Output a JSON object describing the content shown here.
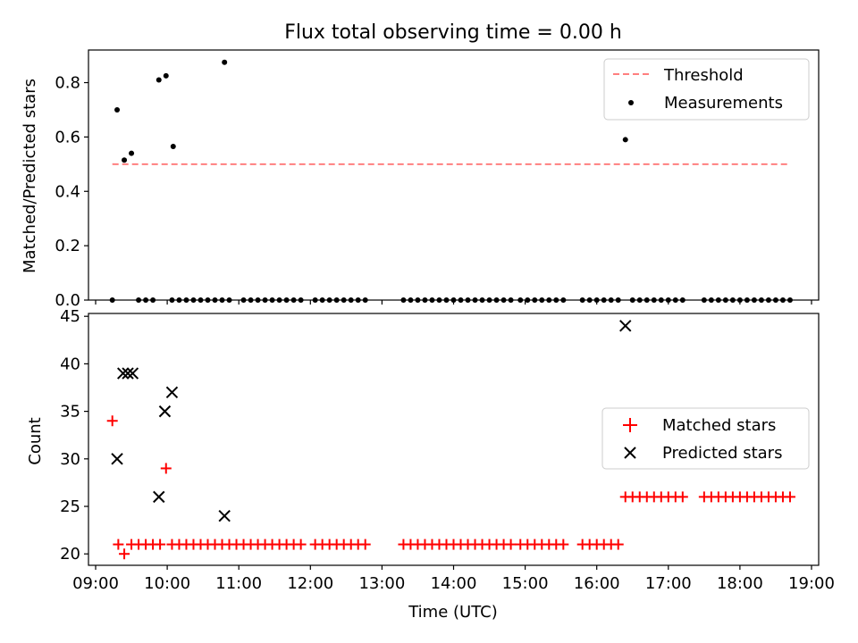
{
  "chart_data": [
    {
      "type": "scatter",
      "title": "Flux total observing time = 0.00 h",
      "ylabel": "Matched/Predicted stars",
      "ylim": [
        0,
        0.92
      ],
      "yticks": [
        "0.0",
        "0.2",
        "0.4",
        "0.6",
        "0.8"
      ],
      "threshold": {
        "name": "Threshold",
        "y": 0.5,
        "x_range": [
          "09:14",
          "18:40"
        ],
        "color": "#ff7f7f"
      },
      "series": [
        {
          "name": "Measurements",
          "color": "#000000",
          "points": [
            [
              "09:14",
              0.0
            ],
            [
              "09:18",
              0.7
            ],
            [
              "09:24",
              0.515
            ],
            [
              "09:30",
              0.54
            ],
            [
              "09:36",
              0.0
            ],
            [
              "09:42",
              0.0
            ],
            [
              "09:48",
              0.0
            ],
            [
              "09:53",
              0.81
            ],
            [
              "09:59",
              0.825
            ],
            [
              "10:05",
              0.565
            ],
            [
              "10:04",
              0.0
            ],
            [
              "10:10",
              0.0
            ],
            [
              "10:16",
              0.0
            ],
            [
              "10:22",
              0.0
            ],
            [
              "10:28",
              0.0
            ],
            [
              "10:34",
              0.0
            ],
            [
              "10:40",
              0.0
            ],
            [
              "10:46",
              0.0
            ],
            [
              "10:52",
              0.0
            ],
            [
              "10:48",
              0.875
            ],
            [
              "11:04",
              0.0
            ],
            [
              "11:10",
              0.0
            ],
            [
              "11:16",
              0.0
            ],
            [
              "11:22",
              0.0
            ],
            [
              "11:28",
              0.0
            ],
            [
              "11:34",
              0.0
            ],
            [
              "11:40",
              0.0
            ],
            [
              "11:46",
              0.0
            ],
            [
              "11:52",
              0.0
            ],
            [
              "12:04",
              0.0
            ],
            [
              "12:10",
              0.0
            ],
            [
              "12:16",
              0.0
            ],
            [
              "12:22",
              0.0
            ],
            [
              "12:28",
              0.0
            ],
            [
              "12:34",
              0.0
            ],
            [
              "12:40",
              0.0
            ],
            [
              "12:46",
              0.0
            ],
            [
              "13:18",
              0.0
            ],
            [
              "13:24",
              0.0
            ],
            [
              "13:30",
              0.0
            ],
            [
              "13:36",
              0.0
            ],
            [
              "13:42",
              0.0
            ],
            [
              "13:48",
              0.0
            ],
            [
              "13:54",
              0.0
            ],
            [
              "14:00",
              0.0
            ],
            [
              "14:06",
              0.0
            ],
            [
              "14:12",
              0.0
            ],
            [
              "14:18",
              0.0
            ],
            [
              "14:24",
              0.0
            ],
            [
              "14:30",
              0.0
            ],
            [
              "14:36",
              0.0
            ],
            [
              "14:42",
              0.0
            ],
            [
              "14:48",
              0.0
            ],
            [
              "14:56",
              0.0
            ],
            [
              "15:02",
              0.0
            ],
            [
              "15:08",
              0.0
            ],
            [
              "15:14",
              0.0
            ],
            [
              "15:20",
              0.0
            ],
            [
              "15:26",
              0.0
            ],
            [
              "15:32",
              0.0
            ],
            [
              "15:48",
              0.0
            ],
            [
              "15:54",
              0.0
            ],
            [
              "16:00",
              0.0
            ],
            [
              "16:06",
              0.0
            ],
            [
              "16:12",
              0.0
            ],
            [
              "16:18",
              0.0
            ],
            [
              "16:24",
              0.59
            ],
            [
              "16:30",
              0.0
            ],
            [
              "16:36",
              0.0
            ],
            [
              "16:42",
              0.0
            ],
            [
              "16:48",
              0.0
            ],
            [
              "16:54",
              0.0
            ],
            [
              "17:00",
              0.0
            ],
            [
              "17:06",
              0.0
            ],
            [
              "17:12",
              0.0
            ],
            [
              "17:30",
              0.0
            ],
            [
              "17:36",
              0.0
            ],
            [
              "17:42",
              0.0
            ],
            [
              "17:48",
              0.0
            ],
            [
              "17:54",
              0.0
            ],
            [
              "18:00",
              0.0
            ],
            [
              "18:06",
              0.0
            ],
            [
              "18:12",
              0.0
            ],
            [
              "18:18",
              0.0
            ],
            [
              "18:24",
              0.0
            ],
            [
              "18:30",
              0.0
            ],
            [
              "18:36",
              0.0
            ],
            [
              "18:42",
              0.0
            ]
          ]
        }
      ],
      "legend": "top-right"
    },
    {
      "type": "scatter",
      "xlabel": "Time (UTC)",
      "ylabel": "Count",
      "ylim": [
        18.8,
        45.3
      ],
      "yticks": [
        "20",
        "25",
        "30",
        "35",
        "40",
        "45"
      ],
      "xlim": [
        "08:54",
        "19:06"
      ],
      "xticks": [
        "09:00",
        "10:00",
        "11:00",
        "12:00",
        "13:00",
        "14:00",
        "15:00",
        "16:00",
        "17:00",
        "18:00",
        "19:00"
      ],
      "series": [
        {
          "name": "Matched stars",
          "marker": "+",
          "color": "#ff0000",
          "points": [
            [
              "09:14",
              34
            ],
            [
              "09:19",
              21
            ],
            [
              "09:24",
              20
            ],
            [
              "09:30",
              21
            ],
            [
              "09:36",
              21
            ],
            [
              "09:42",
              21
            ],
            [
              "09:48",
              21
            ],
            [
              "09:54",
              21
            ],
            [
              "09:59",
              29
            ],
            [
              "10:04",
              21
            ],
            [
              "10:10",
              21
            ],
            [
              "10:16",
              21
            ],
            [
              "10:22",
              21
            ],
            [
              "10:28",
              21
            ],
            [
              "10:34",
              21
            ],
            [
              "10:40",
              21
            ],
            [
              "10:46",
              21
            ],
            [
              "10:52",
              21
            ],
            [
              "10:58",
              21
            ],
            [
              "11:04",
              21
            ],
            [
              "11:10",
              21
            ],
            [
              "11:16",
              21
            ],
            [
              "11:22",
              21
            ],
            [
              "11:28",
              21
            ],
            [
              "11:34",
              21
            ],
            [
              "11:40",
              21
            ],
            [
              "11:46",
              21
            ],
            [
              "11:52",
              21
            ],
            [
              "12:04",
              21
            ],
            [
              "12:10",
              21
            ],
            [
              "12:16",
              21
            ],
            [
              "12:22",
              21
            ],
            [
              "12:28",
              21
            ],
            [
              "12:34",
              21
            ],
            [
              "12:40",
              21
            ],
            [
              "12:46",
              21
            ],
            [
              "13:18",
              21
            ],
            [
              "13:24",
              21
            ],
            [
              "13:30",
              21
            ],
            [
              "13:36",
              21
            ],
            [
              "13:42",
              21
            ],
            [
              "13:48",
              21
            ],
            [
              "13:54",
              21
            ],
            [
              "14:00",
              21
            ],
            [
              "14:06",
              21
            ],
            [
              "14:12",
              21
            ],
            [
              "14:18",
              21
            ],
            [
              "14:24",
              21
            ],
            [
              "14:30",
              21
            ],
            [
              "14:36",
              21
            ],
            [
              "14:42",
              21
            ],
            [
              "14:48",
              21
            ],
            [
              "14:56",
              21
            ],
            [
              "15:02",
              21
            ],
            [
              "15:08",
              21
            ],
            [
              "15:14",
              21
            ],
            [
              "15:20",
              21
            ],
            [
              "15:26",
              21
            ],
            [
              "15:32",
              21
            ],
            [
              "15:48",
              21
            ],
            [
              "15:54",
              21
            ],
            [
              "16:00",
              21
            ],
            [
              "16:06",
              21
            ],
            [
              "16:12",
              21
            ],
            [
              "16:18",
              21
            ],
            [
              "16:24",
              26
            ],
            [
              "16:30",
              26
            ],
            [
              "16:36",
              26
            ],
            [
              "16:42",
              26
            ],
            [
              "16:48",
              26
            ],
            [
              "16:54",
              26
            ],
            [
              "17:00",
              26
            ],
            [
              "17:06",
              26
            ],
            [
              "17:12",
              26
            ],
            [
              "17:30",
              26
            ],
            [
              "17:36",
              26
            ],
            [
              "17:42",
              26
            ],
            [
              "17:48",
              26
            ],
            [
              "17:54",
              26
            ],
            [
              "18:00",
              26
            ],
            [
              "18:06",
              26
            ],
            [
              "18:12",
              26
            ],
            [
              "18:18",
              26
            ],
            [
              "18:24",
              26
            ],
            [
              "18:30",
              26
            ],
            [
              "18:36",
              26
            ],
            [
              "18:42",
              26
            ]
          ]
        },
        {
          "name": "Predicted stars",
          "marker": "x",
          "color": "#000000",
          "points": [
            [
              "09:18",
              30
            ],
            [
              "09:23",
              39
            ],
            [
              "09:27",
              39
            ],
            [
              "09:31",
              39
            ],
            [
              "09:53",
              26
            ],
            [
              "09:58",
              35
            ],
            [
              "10:04",
              37
            ],
            [
              "10:48",
              24
            ],
            [
              "16:24",
              44
            ]
          ]
        }
      ],
      "legend": "center-right"
    }
  ]
}
